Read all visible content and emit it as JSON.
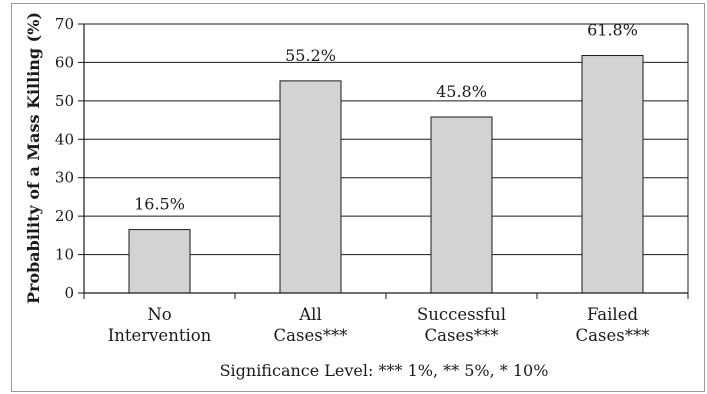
{
  "chart_data": {
    "type": "bar",
    "categories": [
      [
        "No",
        "Intervention"
      ],
      [
        "All",
        "Cases***"
      ],
      [
        "Successful",
        "Cases***"
      ],
      [
        "Failed",
        "Cases***"
      ]
    ],
    "values": [
      16.5,
      55.2,
      45.8,
      61.8
    ],
    "data_labels": [
      "16.5%",
      "55.2%",
      "45.8%",
      "61.8%"
    ],
    "ylabel": "Probability of a Mass Killing (%)",
    "xlabel": "",
    "ylim": [
      0,
      70
    ],
    "yticks": [
      0,
      10,
      20,
      30,
      40,
      50,
      60,
      70
    ],
    "grid": true,
    "note": "Significance Level: *** 1%, ** 5%, * 10%",
    "colors": {
      "bar_fill": "#d3d3d3",
      "bar_stroke": "#1a1a1a",
      "grid": "#1a1a1a"
    }
  }
}
